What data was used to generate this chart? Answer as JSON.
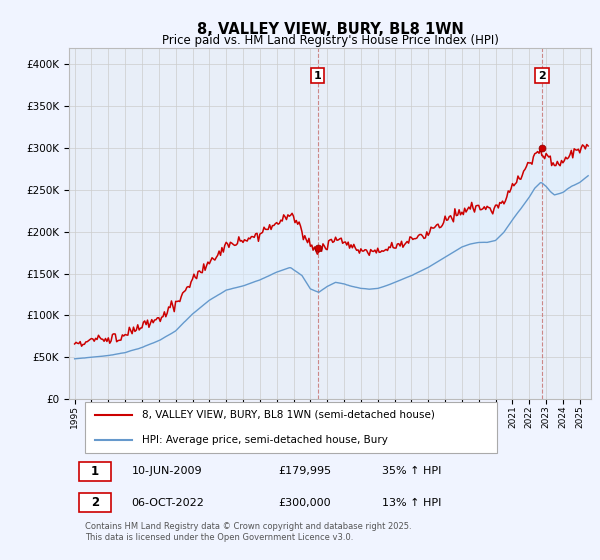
{
  "title": "8, VALLEY VIEW, BURY, BL8 1WN",
  "subtitle": "Price paid vs. HM Land Registry's House Price Index (HPI)",
  "ylim": [
    0,
    420000
  ],
  "yticks": [
    0,
    50000,
    100000,
    150000,
    200000,
    250000,
    300000,
    350000,
    400000
  ],
  "ytick_labels": [
    "£0",
    "£50K",
    "£100K",
    "£150K",
    "£200K",
    "£250K",
    "£300K",
    "£350K",
    "£400K"
  ],
  "property_color": "#cc0000",
  "hpi_color": "#6699cc",
  "fill_color": "#ddeeff",
  "vline_color": "#cc8888",
  "property_label": "8, VALLEY VIEW, BURY, BL8 1WN (semi-detached house)",
  "hpi_label": "HPI: Average price, semi-detached house, Bury",
  "annotation1_date": "10-JUN-2009",
  "annotation1_price": "£179,995",
  "annotation1_hpi": "35% ↑ HPI",
  "annotation2_date": "06-OCT-2022",
  "annotation2_price": "£300,000",
  "annotation2_hpi": "13% ↑ HPI",
  "footer": "Contains HM Land Registry data © Crown copyright and database right 2025.\nThis data is licensed under the Open Government Licence v3.0.",
  "background_color": "#f0f4ff",
  "plot_background": "#e8eef8",
  "grid_color": "#cccccc"
}
